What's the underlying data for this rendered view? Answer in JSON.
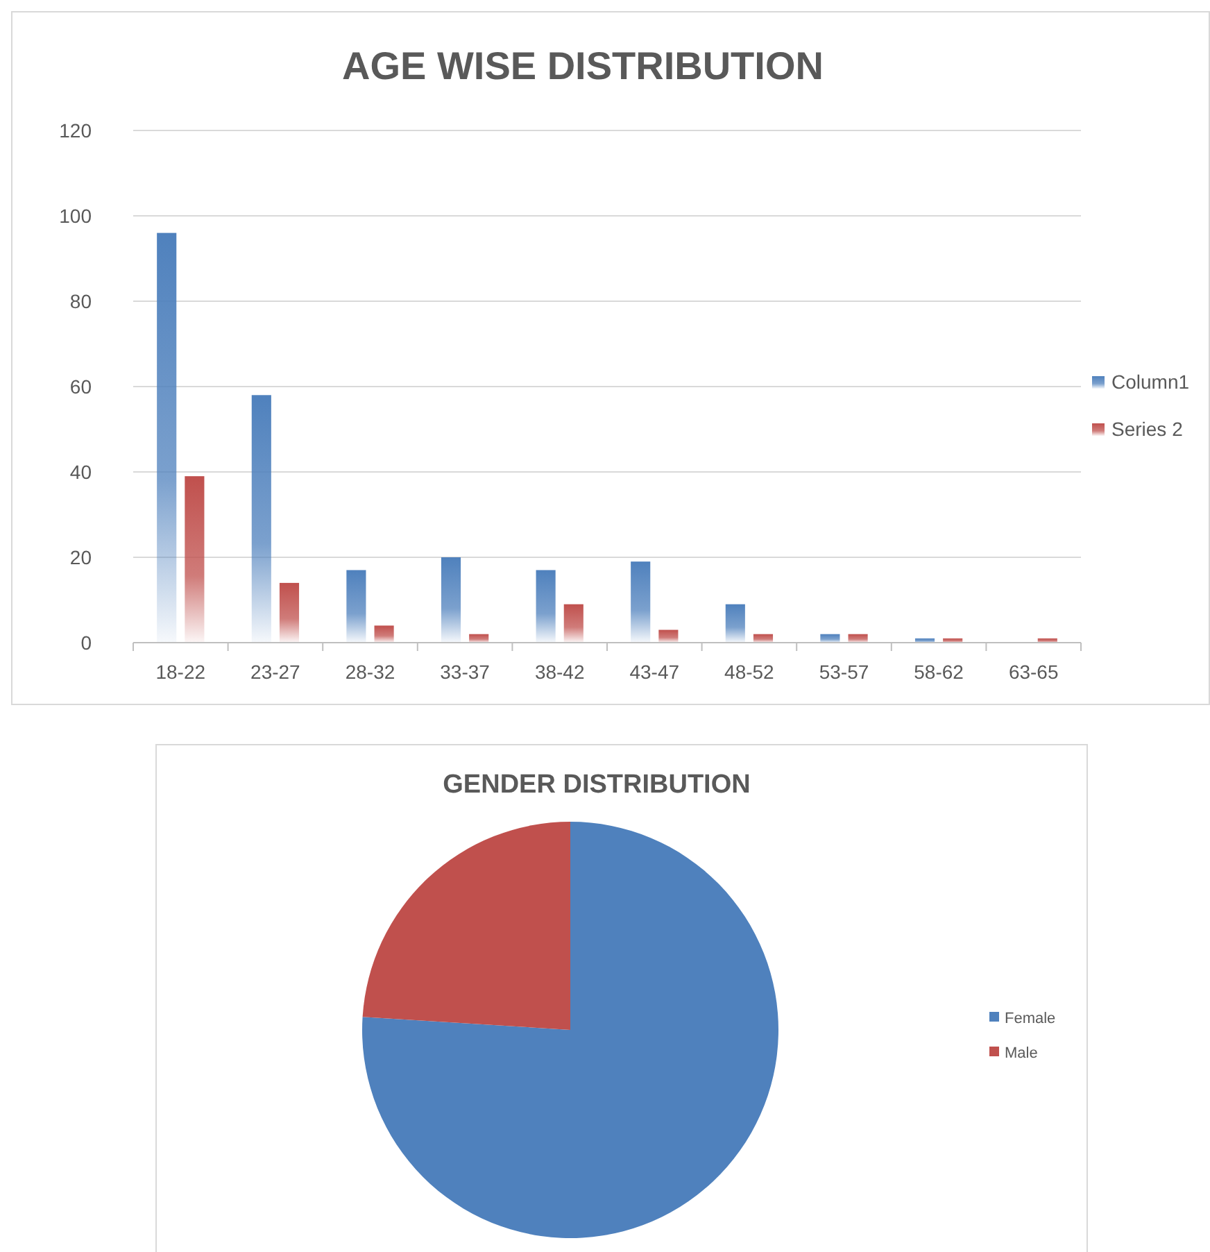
{
  "chart_data": [
    {
      "type": "bar",
      "title": "AGE WISE DISTRIBUTION",
      "categories": [
        "18-22",
        "23-27",
        "28-32",
        "33-37",
        "38-42",
        "43-47",
        "48-52",
        "53-57",
        "58-62",
        "63-65"
      ],
      "series": [
        {
          "name": "Column1",
          "color": "#4f81bd",
          "values": [
            96,
            58,
            17,
            20,
            17,
            19,
            9,
            2,
            1,
            0
          ]
        },
        {
          "name": "Series 2",
          "color": "#c0504d",
          "values": [
            39,
            14,
            4,
            2,
            9,
            3,
            2,
            2,
            1,
            1
          ]
        }
      ],
      "ylim": [
        0,
        120
      ],
      "yticks": [
        0,
        20,
        40,
        60,
        80,
        100,
        120
      ],
      "grid": "y",
      "legend": "right"
    },
    {
      "type": "pie",
      "title": "GENDER DISTRIBUTION",
      "categories": [
        "Female",
        "Male"
      ],
      "values": [
        76,
        24
      ],
      "colors": [
        "#4f81bd",
        "#c0504d"
      ],
      "legend": "right"
    }
  ]
}
